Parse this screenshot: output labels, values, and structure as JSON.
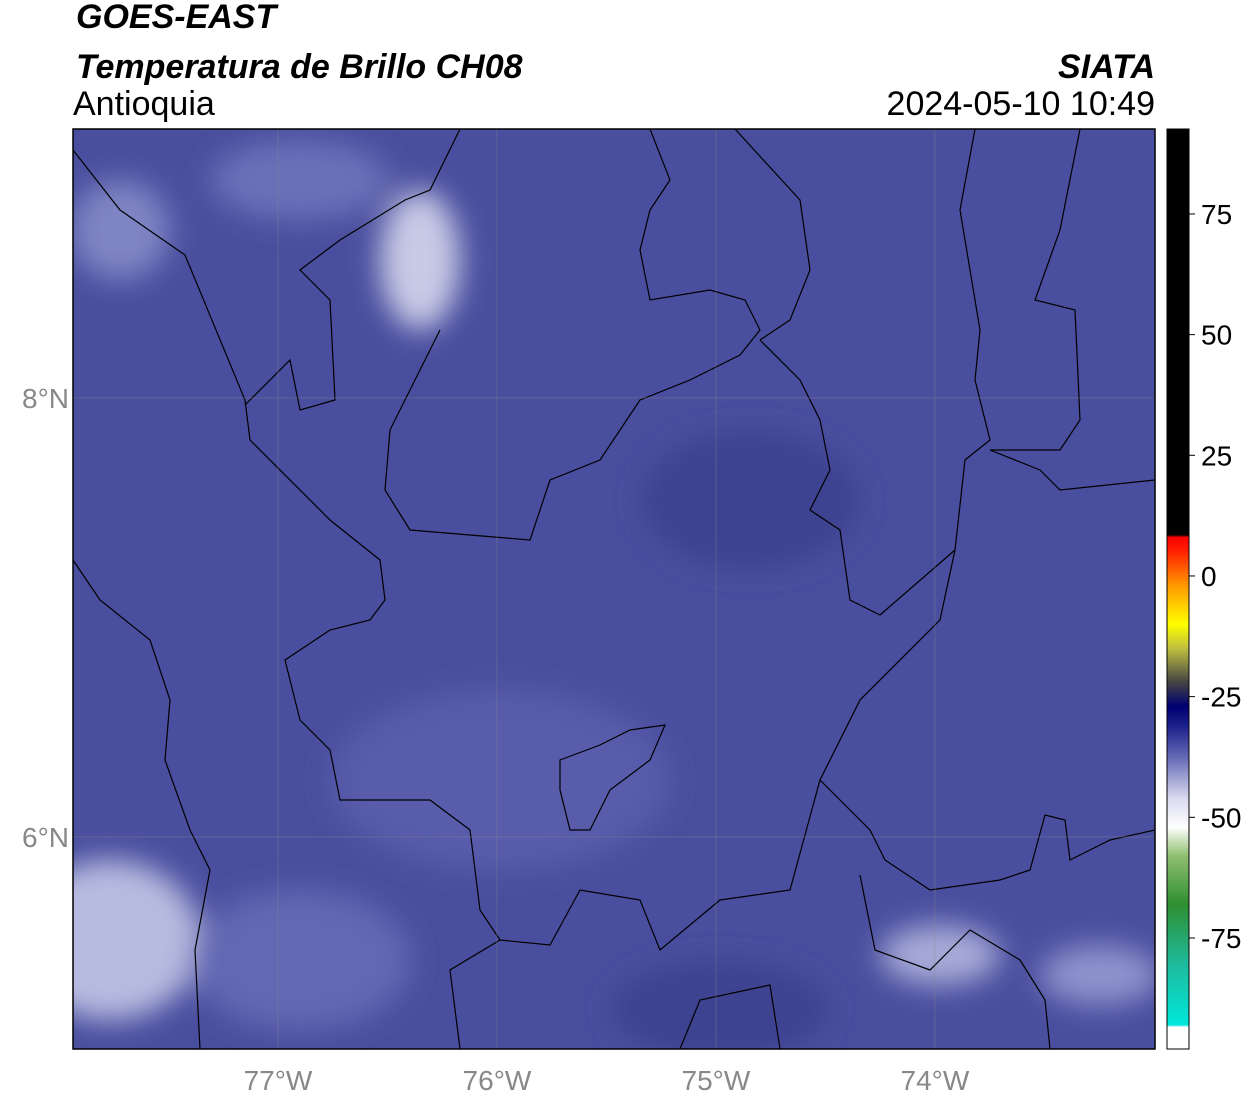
{
  "header": {
    "title": "GOES-EAST",
    "subtitle": "Temperatura de Brillo CH08",
    "region": "Antioquia",
    "source": "SIATA",
    "datetime": "2024-05-10 10:49"
  },
  "map": {
    "xlim": [
      -77.936,
      -72.995
    ],
    "ylim": [
      5.034,
      9.225
    ],
    "xticks": [
      {
        "value": -77,
        "label": "77°W"
      },
      {
        "value": -76,
        "label": "76°W"
      },
      {
        "value": -75,
        "label": "75°W"
      },
      {
        "value": -74,
        "label": "74°W"
      }
    ],
    "yticks": [
      {
        "value": 8,
        "label": "8°N"
      },
      {
        "value": 6,
        "label": "6°N"
      }
    ],
    "grid": true,
    "background": "#4a4e9e"
  },
  "colorbar": {
    "clim": [
      -98,
      92.6
    ],
    "ticks": [
      75,
      50,
      25,
      0,
      -25,
      -50,
      -75
    ],
    "stops": [
      {
        "value": -98,
        "color": "#ffffff"
      },
      {
        "value": -93.5,
        "color": "#ffffff"
      },
      {
        "value": -93,
        "color": "#00e8dc"
      },
      {
        "value": -80,
        "color": "#1fb99a"
      },
      {
        "value": -68,
        "color": "#2f8f30"
      },
      {
        "value": -58,
        "color": "#8fbf70"
      },
      {
        "value": -52,
        "color": "#ffffff"
      },
      {
        "value": -46,
        "color": "#d9d9ef"
      },
      {
        "value": -38,
        "color": "#6a6fb8"
      },
      {
        "value": -31,
        "color": "#1a1f8a"
      },
      {
        "value": -27,
        "color": "#000070"
      },
      {
        "value": -22,
        "color": "#444444"
      },
      {
        "value": -15,
        "color": "#bfbf40"
      },
      {
        "value": -10,
        "color": "#ffff00"
      },
      {
        "value": -2,
        "color": "#ff9900"
      },
      {
        "value": 5,
        "color": "#ff2200"
      },
      {
        "value": 8,
        "color": "#ff0000"
      },
      {
        "value": 8.5,
        "color": "#000000"
      },
      {
        "value": 92.6,
        "color": "#000000"
      }
    ]
  }
}
